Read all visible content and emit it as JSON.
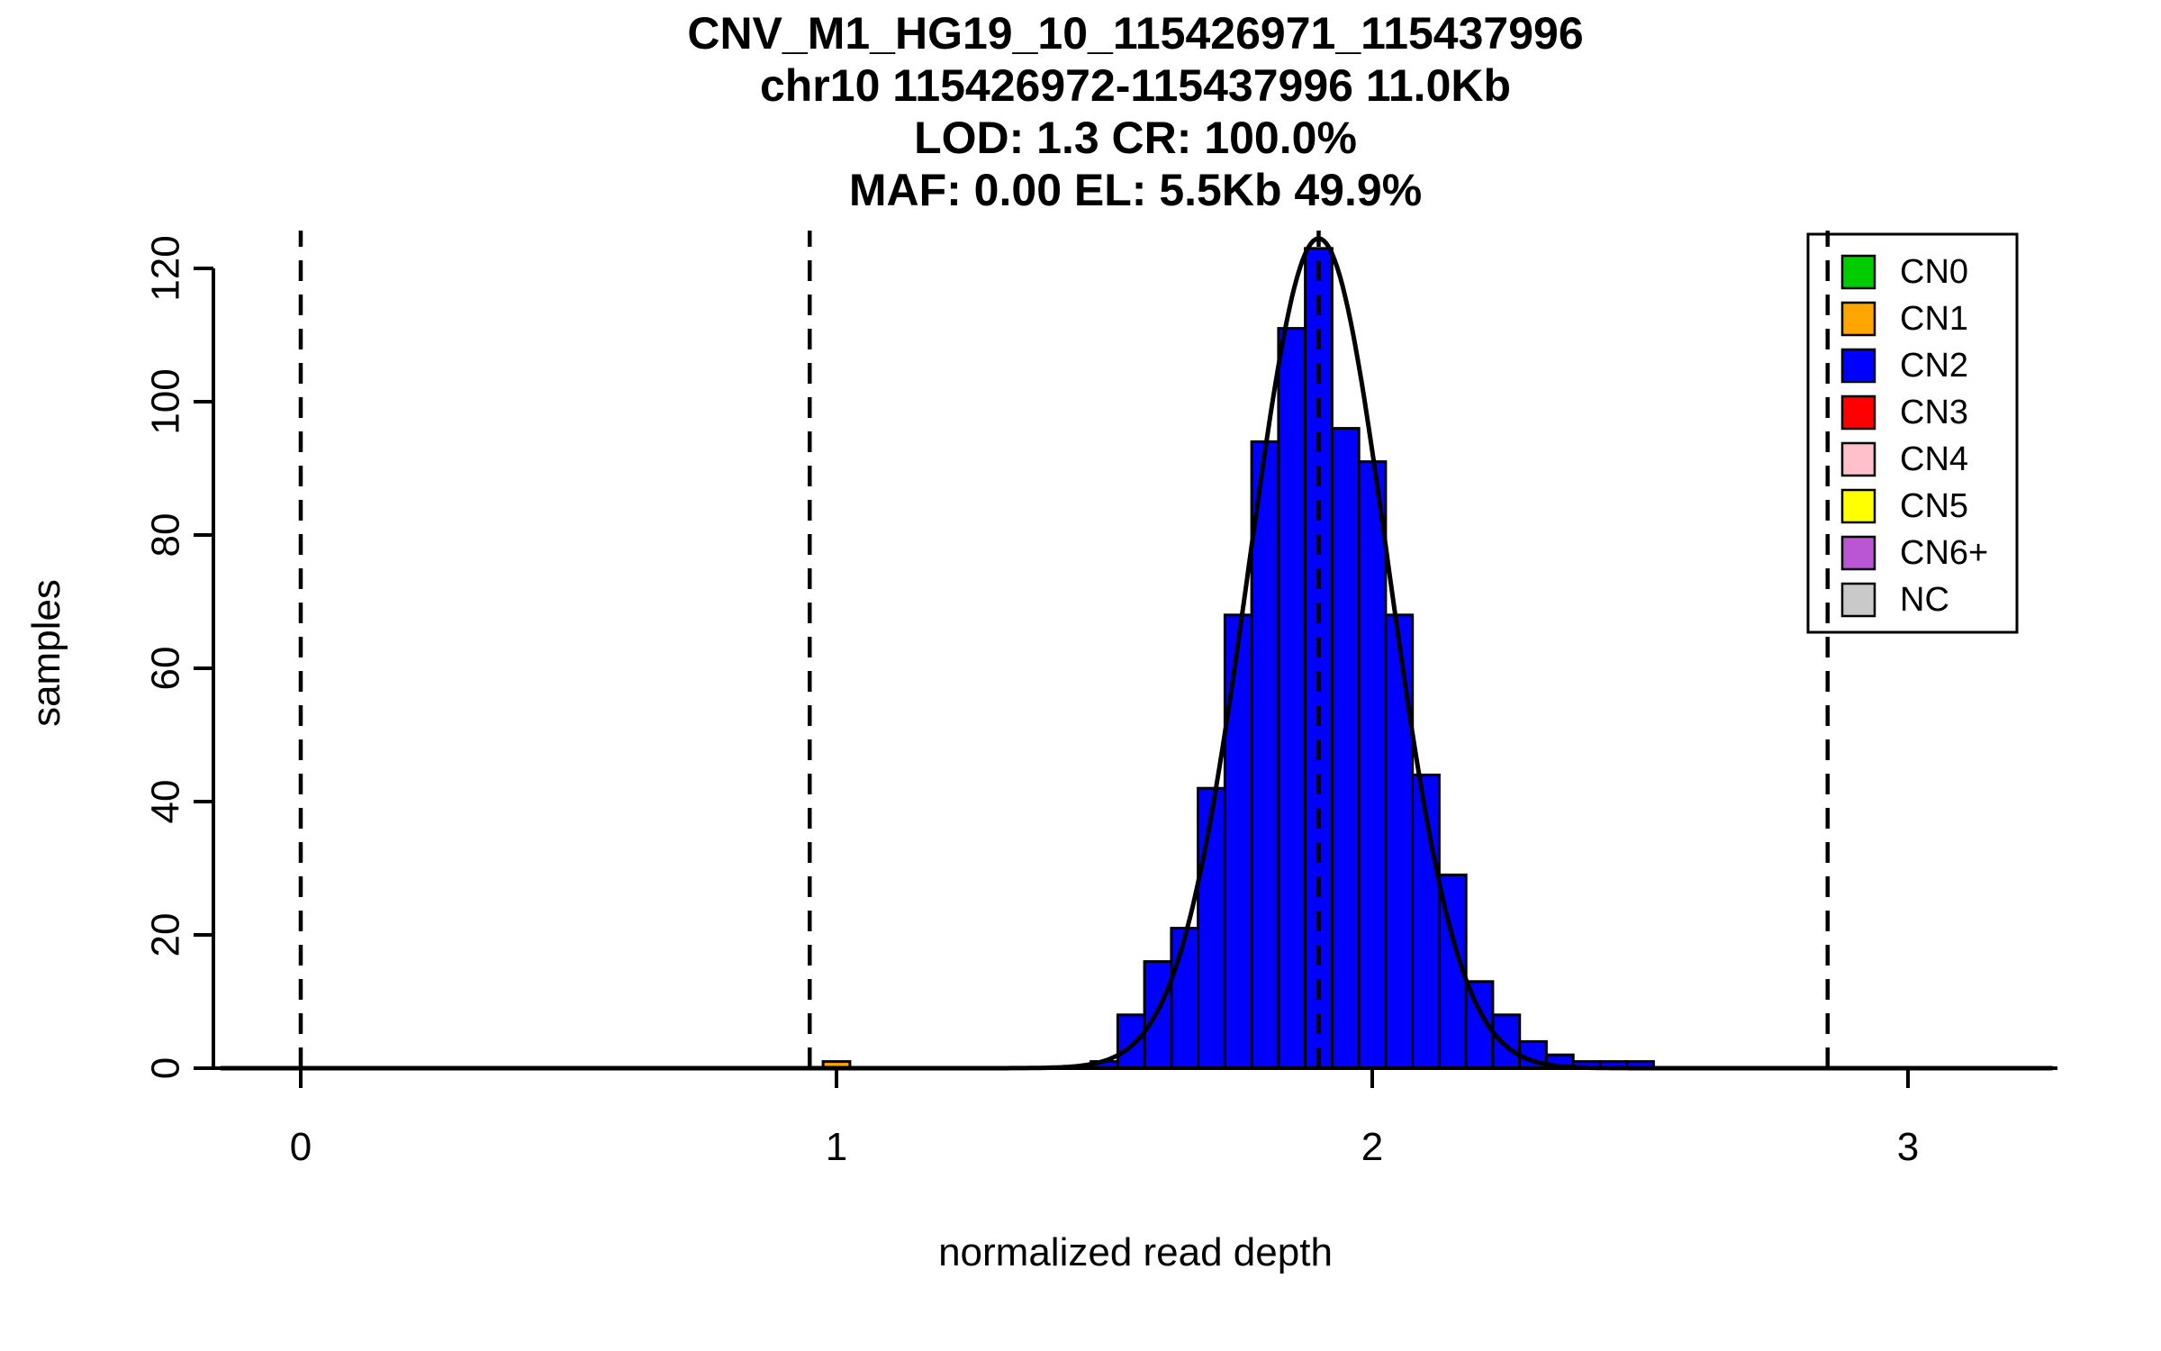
{
  "chart_data": {
    "type": "bar",
    "subtype": "histogram-with-fit",
    "title_lines": [
      "CNV_M1_HG19_10_115426971_115437996",
      "chr10 115426972-115437996 11.0Kb",
      "LOD: 1.3 CR: 100.0%",
      "MAF: 0.00 EL: 5.5Kb 49.9%"
    ],
    "xlabel": "normalized read depth",
    "ylabel": "samples",
    "xlim": [
      -0.15,
      3.27
    ],
    "ylim": [
      0,
      126
    ],
    "xticks": [
      0,
      1,
      2,
      3
    ],
    "yticks": [
      0,
      20,
      40,
      60,
      80,
      100,
      120
    ],
    "grid": false,
    "background": "#FFFFFF",
    "bin_width": 0.05,
    "series": [
      {
        "name": "CN2",
        "color": "#0000FF",
        "bin_start": 1.475,
        "heights": [
          1,
          8,
          16,
          21,
          42,
          68,
          94,
          111,
          123,
          96,
          91,
          68,
          44,
          29,
          13,
          8,
          4,
          2,
          1,
          1,
          1
        ]
      },
      {
        "name": "CN1",
        "color": "#FFA500",
        "bin_start": 0.975,
        "heights": [
          1
        ]
      }
    ],
    "fit_curve": {
      "type": "gaussian",
      "mean": 1.9,
      "sd": 0.13,
      "peak": 124.5,
      "color": "#000000"
    },
    "dashed_lines_x": [
      0,
      0.95,
      1.9,
      2.85
    ],
    "legend": {
      "position": "top-right",
      "items": [
        {
          "label": "CN0",
          "color": "#00CD00"
        },
        {
          "label": "CN1",
          "color": "#FFA500"
        },
        {
          "label": "CN2",
          "color": "#0000FF"
        },
        {
          "label": "CN3",
          "color": "#FF0000"
        },
        {
          "label": "CN4",
          "color": "#FFC0CB"
        },
        {
          "label": "CN5",
          "color": "#FFFF00"
        },
        {
          "label": "CN6+",
          "color": "#BA55D3"
        },
        {
          "label": "NC",
          "color": "#C9C9C9"
        }
      ]
    }
  }
}
